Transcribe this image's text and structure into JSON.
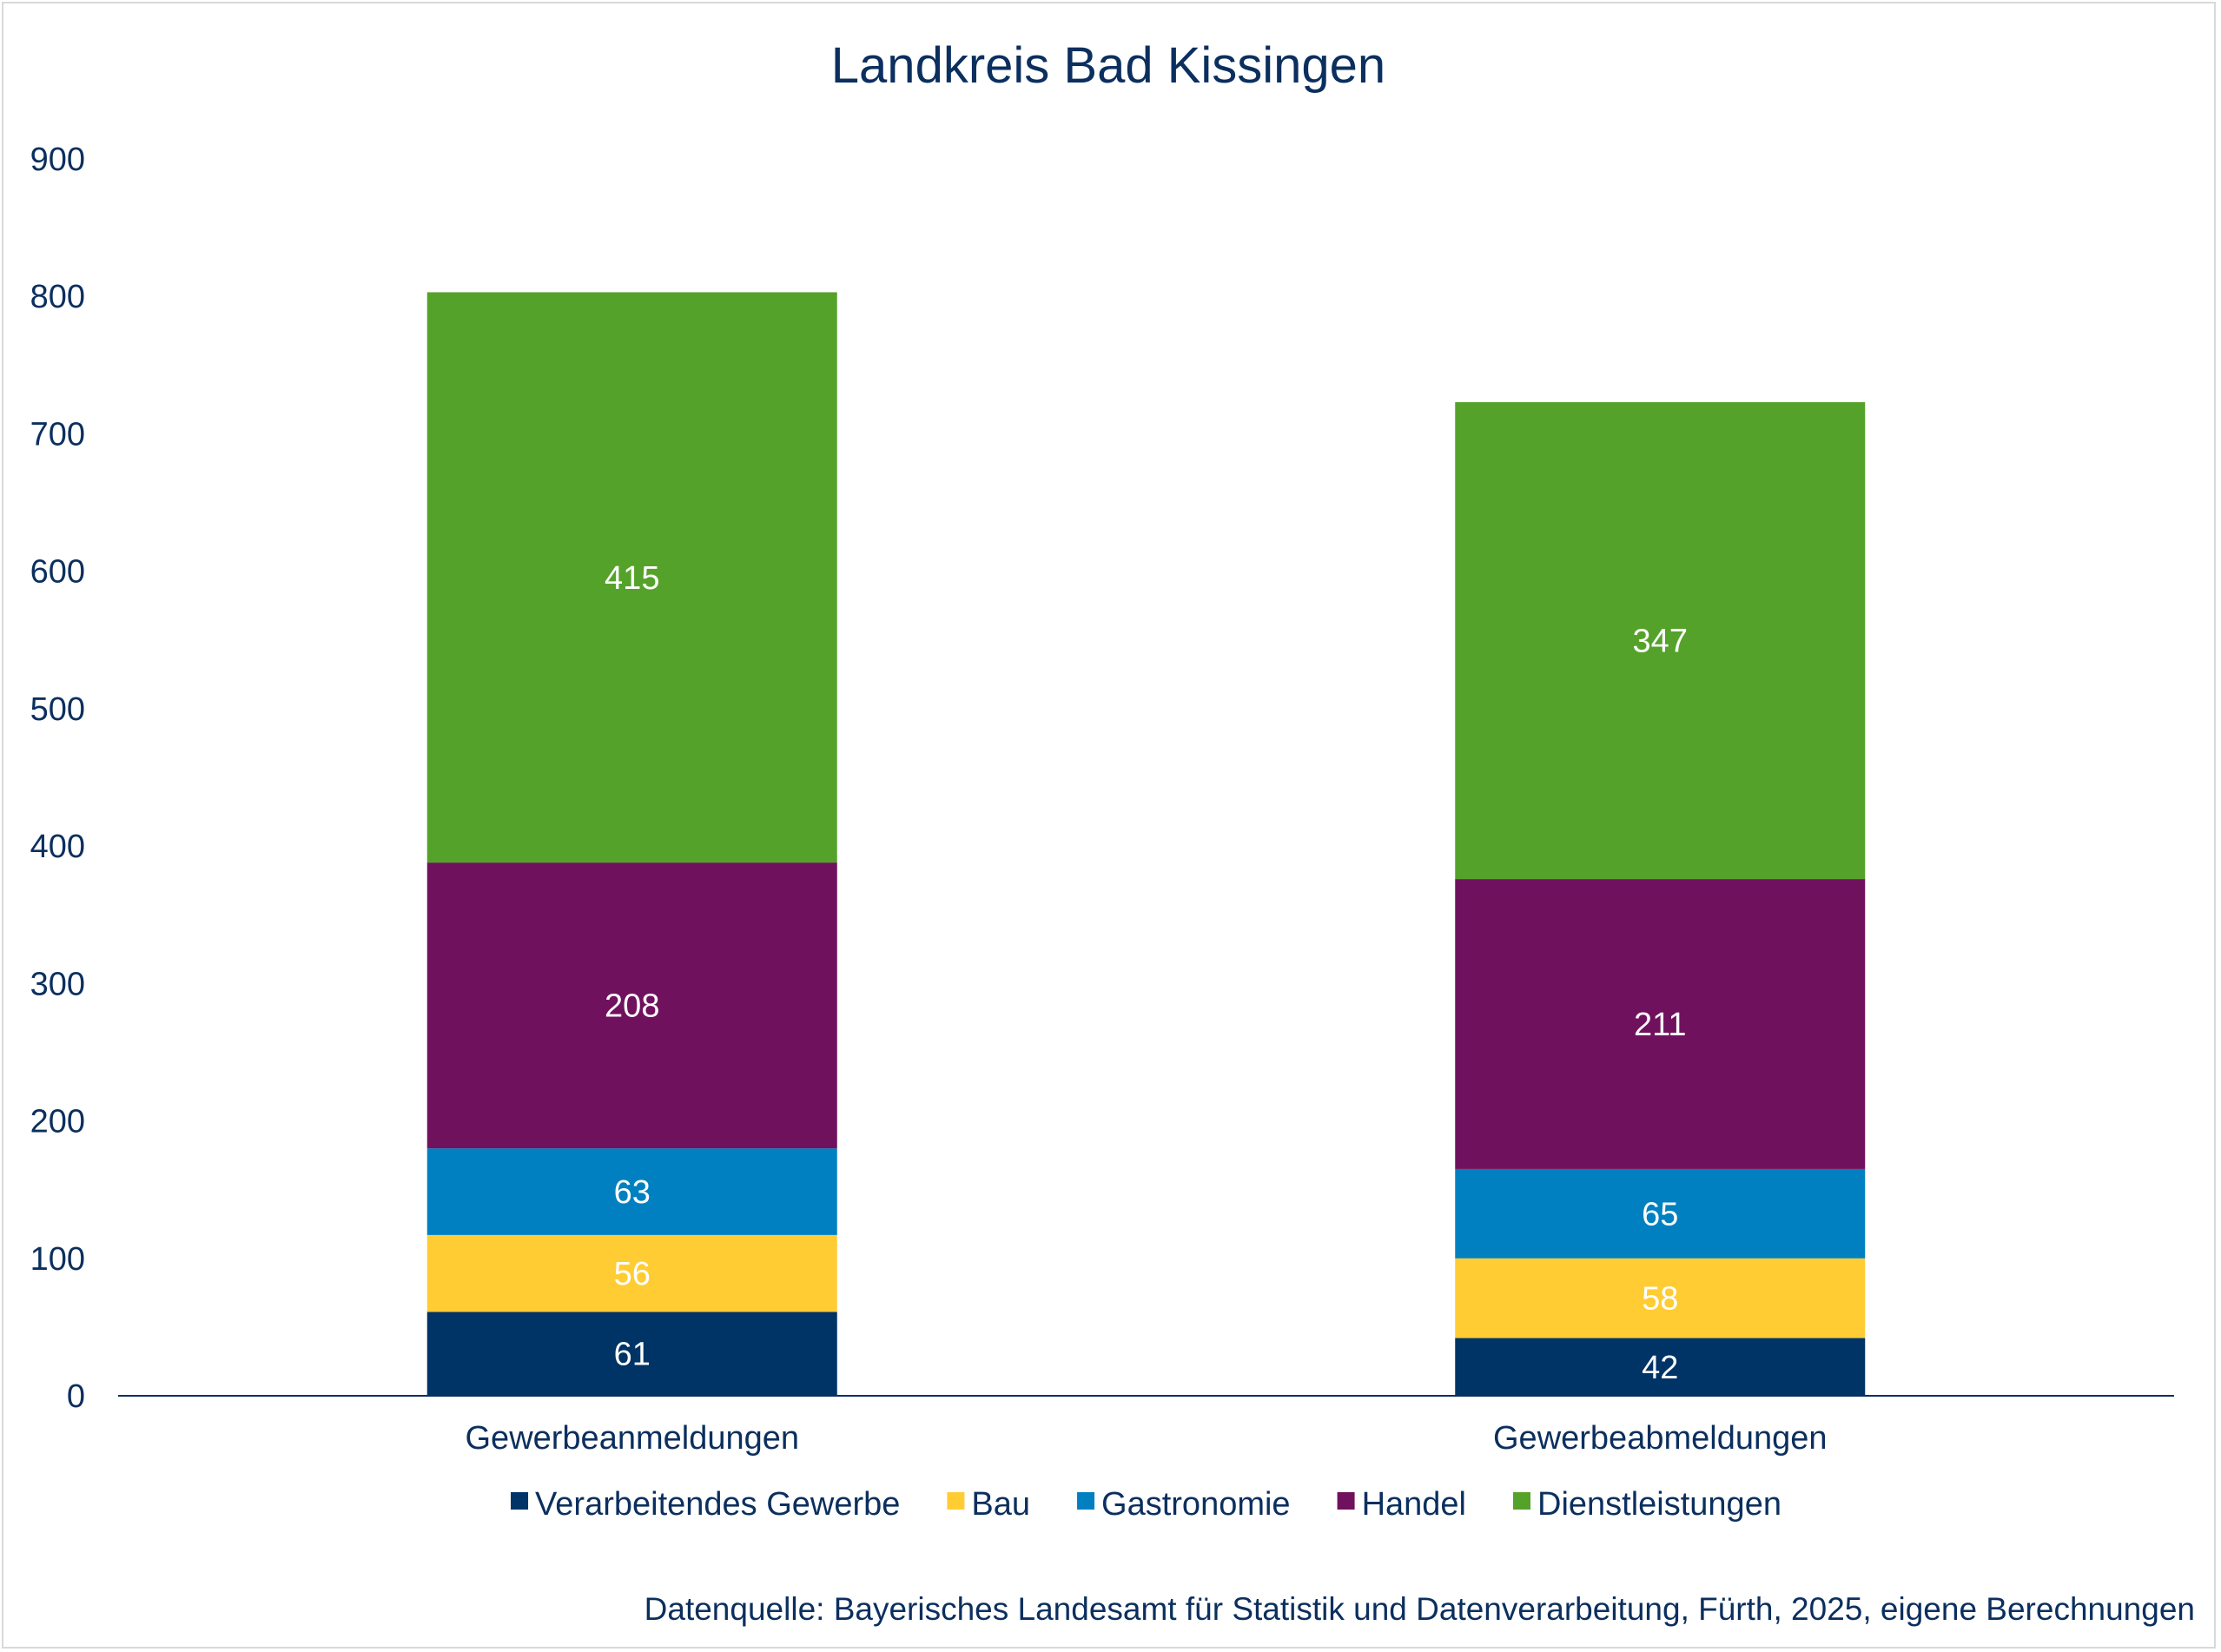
{
  "chart_data": {
    "type": "bar",
    "stacked": true,
    "title": "Landkreis Bad Kissingen",
    "categories": [
      "Gewerbeanmeldungen",
      "Gewerbeabmeldungen"
    ],
    "series": [
      {
        "name": "Verarbeitendes Gewerbe",
        "values": [
          61,
          42
        ],
        "color": "#003366"
      },
      {
        "name": "Bau",
        "values": [
          56,
          58
        ],
        "color": "#ffcc33"
      },
      {
        "name": "Gastronomie",
        "values": [
          63,
          65
        ],
        "color": "#0080c0"
      },
      {
        "name": "Handel",
        "values": [
          208,
          211
        ],
        "color": "#70115e"
      },
      {
        "name": "Dienstleistungen",
        "values": [
          415,
          347
        ],
        "color": "#55a22a"
      }
    ],
    "ylim": [
      0,
      900
    ],
    "yticks": [
      "0",
      "100",
      "200",
      "300",
      "400",
      "500",
      "600",
      "700",
      "800",
      "900"
    ],
    "grid": false,
    "legend_position": "bottom",
    "source": "Datenquelle: Bayerisches Landesamt für Statistik und Datenverarbeitung, Fürth, 2025, eigene Berechnungen"
  }
}
